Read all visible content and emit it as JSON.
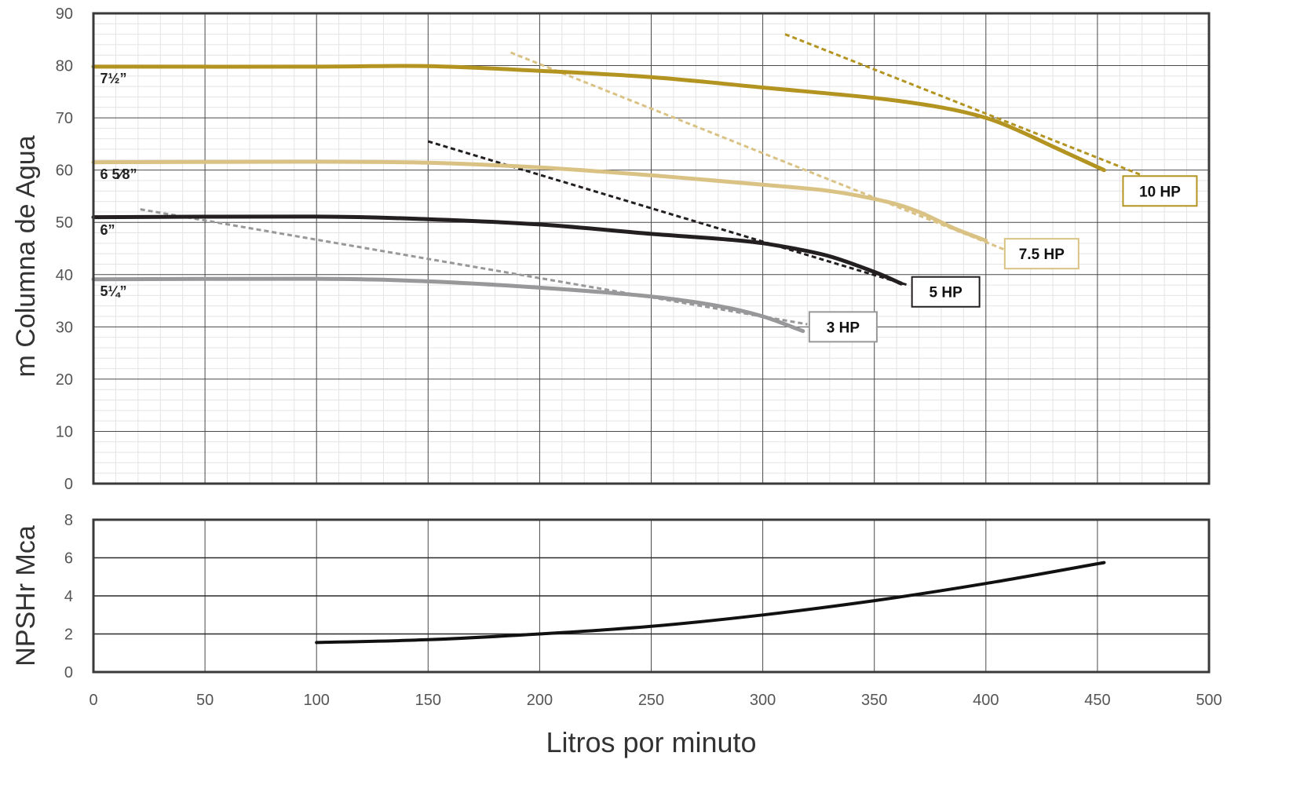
{
  "chart_data": [
    {
      "type": "line",
      "title": "",
      "xlabel": "",
      "ylabel": "m Columna de Agua",
      "xlim": [
        0,
        500
      ],
      "ylim": [
        0,
        90
      ],
      "x_ticks": [
        0,
        50,
        100,
        150,
        200,
        250,
        300,
        350,
        400,
        450,
        500
      ],
      "y_ticks": [
        0,
        10,
        20,
        30,
        40,
        50,
        60,
        70,
        80,
        90
      ],
      "grid": true,
      "series": [
        {
          "name": "7½”",
          "color": "#b39420",
          "style": "solid",
          "points": [
            [
              0,
              79.8
            ],
            [
              100,
              79.8
            ],
            [
              150,
              79.9
            ],
            [
              200,
              79.0
            ],
            [
              250,
              77.8
            ],
            [
              300,
              75.8
            ],
            [
              350,
              73.8
            ],
            [
              380,
              72.0
            ],
            [
              400,
              70.0
            ],
            [
              415,
              67.5
            ],
            [
              430,
              64.5
            ],
            [
              453,
              60.0
            ]
          ]
        },
        {
          "name": "6 5⁄8”",
          "color": "#d9c284",
          "style": "solid",
          "points": [
            [
              0,
              61.5
            ],
            [
              100,
              61.6
            ],
            [
              150,
              61.4
            ],
            [
              200,
              60.5
            ],
            [
              250,
              59.0
            ],
            [
              300,
              57.2
            ],
            [
              330,
              56.0
            ],
            [
              355,
              54.0
            ],
            [
              370,
              52.0
            ],
            [
              385,
              49.0
            ],
            [
              400,
              46.5
            ]
          ]
        },
        {
          "name": "6”",
          "color": "#231f20",
          "style": "solid",
          "points": [
            [
              0,
              51.0
            ],
            [
              100,
              51.1
            ],
            [
              150,
              50.6
            ],
            [
              200,
              49.6
            ],
            [
              250,
              47.8
            ],
            [
              290,
              46.5
            ],
            [
              310,
              45.3
            ],
            [
              330,
              43.5
            ],
            [
              350,
              40.5
            ],
            [
              362,
              38.3
            ]
          ]
        },
        {
          "name": "5¼”",
          "color": "#98989b",
          "style": "solid",
          "points": [
            [
              0,
              39.1
            ],
            [
              100,
              39.2
            ],
            [
              150,
              38.7
            ],
            [
              200,
              37.5
            ],
            [
              250,
              35.8
            ],
            [
              280,
              34.0
            ],
            [
              300,
              32.0
            ],
            [
              318,
              29.2
            ]
          ]
        },
        {
          "name": "10 HP",
          "color": "#b39420",
          "style": "dashed",
          "points": [
            [
              310,
              86.0
            ],
            [
              470,
              59.0
            ]
          ]
        },
        {
          "name": "7.5 HP",
          "color": "#d9c284",
          "style": "dashed",
          "points": [
            [
              187,
              82.5
            ],
            [
              410,
              44.5
            ]
          ]
        },
        {
          "name": "5 HP",
          "color": "#231f20",
          "style": "dashed",
          "points": [
            [
              150,
              65.5
            ],
            [
              365,
              38.0
            ]
          ]
        },
        {
          "name": "3 HP",
          "color": "#98989b",
          "style": "dashed",
          "points": [
            [
              21,
              52.5
            ],
            [
              320,
              30.5
            ]
          ]
        }
      ],
      "diameter_labels": [
        {
          "text": "7½”",
          "x": 3,
          "y": 77.5
        },
        {
          "text": "6 5⁄8”",
          "x": 3,
          "y": 59.2
        },
        {
          "text": "6”",
          "x": 3,
          "y": 48.5
        },
        {
          "text": "5¼”",
          "x": 3,
          "y": 36.8
        }
      ],
      "hp_labels": [
        {
          "text": "10 HP",
          "x": 478,
          "y": 56.0,
          "border": "#b39420"
        },
        {
          "text": "7.5 HP",
          "x": 425,
          "y": 44.0,
          "border": "#d9c284"
        },
        {
          "text": "5 HP",
          "x": 382,
          "y": 36.7,
          "border": "#231f20"
        },
        {
          "text": "3 HP",
          "x": 336,
          "y": 30.0,
          "border": "#98989b"
        }
      ]
    },
    {
      "type": "line",
      "title": "",
      "xlabel": "Litros por minuto",
      "ylabel": "NPSHr Mca",
      "xlim": [
        0,
        500
      ],
      "ylim": [
        0,
        8
      ],
      "x_ticks": [
        0,
        50,
        100,
        150,
        200,
        250,
        300,
        350,
        400,
        450,
        500
      ],
      "y_ticks": [
        0,
        2,
        4,
        6,
        8
      ],
      "grid": true,
      "series": [
        {
          "name": "",
          "color": "#111111",
          "style": "solid",
          "points": [
            [
              100,
              1.55
            ],
            [
              150,
              1.7
            ],
            [
              200,
              2.0
            ],
            [
              250,
              2.4
            ],
            [
              300,
              3.0
            ],
            [
              350,
              3.75
            ],
            [
              400,
              4.65
            ],
            [
              453,
              5.75
            ]
          ]
        }
      ]
    }
  ]
}
